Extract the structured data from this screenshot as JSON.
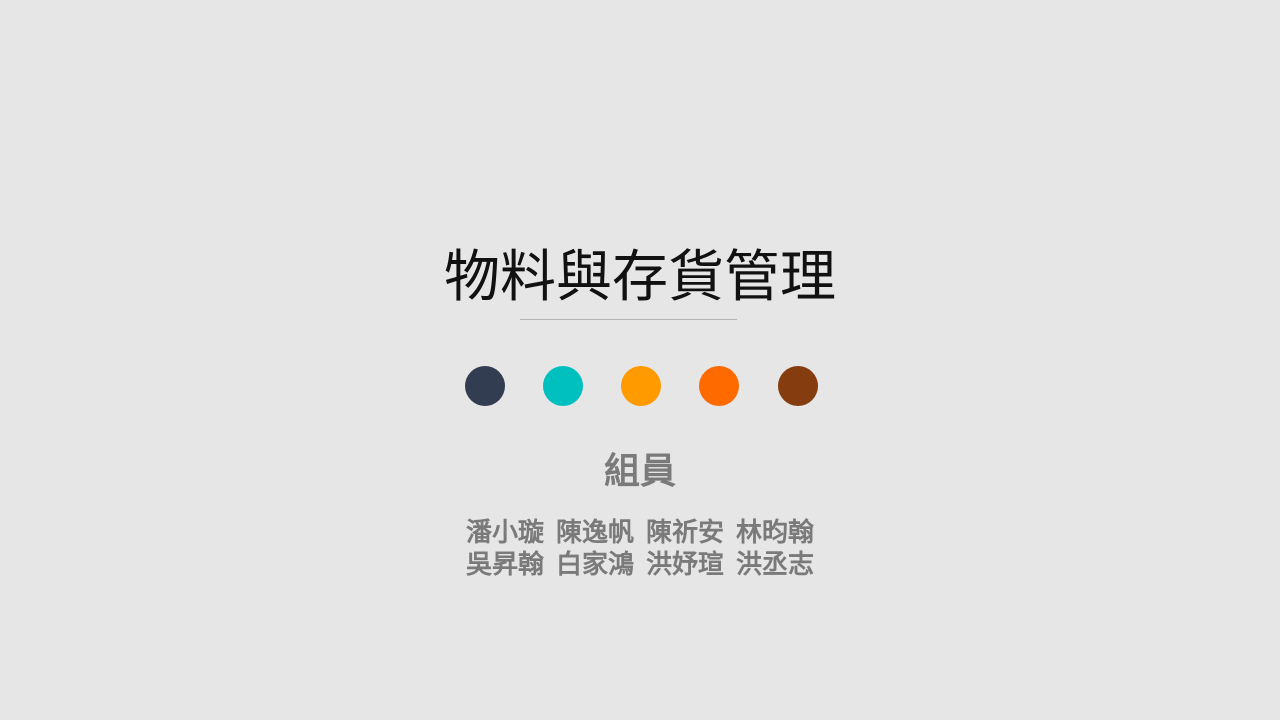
{
  "slide": {
    "title": "物料與存貨管理",
    "dots": [
      {
        "name": "dot-navy",
        "color": "#333d52"
      },
      {
        "name": "dot-teal",
        "color": "#00bfbf"
      },
      {
        "name": "dot-amber",
        "color": "#ff9a00"
      },
      {
        "name": "dot-orange",
        "color": "#ff6a00"
      },
      {
        "name": "dot-brown",
        "color": "#853d10"
      }
    ],
    "members_heading": "組員",
    "members": [
      [
        "潘小璇",
        "陳逸帆",
        "陳祈安",
        "林昀翰"
      ],
      [
        "吳昇翰",
        "白家鴻",
        "洪妤瑄",
        "洪丞志"
      ]
    ]
  }
}
